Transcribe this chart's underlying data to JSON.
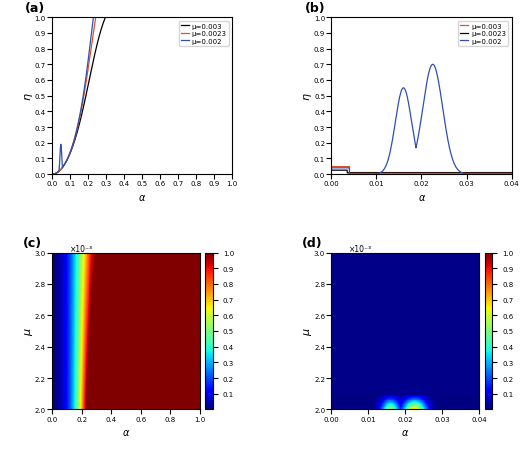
{
  "panel_a": {
    "label": "(a)",
    "xlabel": "α",
    "ylabel": "η",
    "xlim": [
      0,
      1.0
    ],
    "ylim": [
      0,
      1.0
    ],
    "xticks": [
      0.0,
      0.1,
      0.2,
      0.3,
      0.4,
      0.5,
      0.6,
      0.7,
      0.8,
      0.9,
      1.0
    ],
    "yticks": [
      0.0,
      0.1,
      0.2,
      0.3,
      0.4,
      0.5,
      0.6,
      0.7,
      0.8,
      0.9,
      1.0
    ],
    "lines": [
      {
        "mu": 0.003,
        "color": "#000000",
        "label": "μ=0.003"
      },
      {
        "mu": 0.0023,
        "color": "#e05030",
        "label": "μ=0.0023"
      },
      {
        "mu": 0.002,
        "color": "#3050b0",
        "label": "μ=0.002"
      }
    ]
  },
  "panel_b": {
    "label": "(b)",
    "xlabel": "α",
    "ylabel": "η",
    "xlim": [
      0,
      0.04
    ],
    "ylim": [
      0,
      1.0
    ],
    "xticks": [
      0.0,
      0.01,
      0.02,
      0.03,
      0.04
    ],
    "yticks": [
      0.0,
      0.1,
      0.2,
      0.3,
      0.4,
      0.5,
      0.6,
      0.7,
      0.8,
      0.9,
      1.0
    ],
    "lines": [
      {
        "mu": 0.003,
        "color": "#e05030",
        "label": "μ=0.003"
      },
      {
        "mu": 0.0023,
        "color": "#000000",
        "label": "μ=0.0023"
      },
      {
        "mu": 0.002,
        "color": "#3050b0",
        "label": "μ=0.002"
      }
    ]
  },
  "panel_c": {
    "label": "(c)",
    "xlabel": "α",
    "ylabel": "μ",
    "xlim": [
      0,
      1.0
    ],
    "ylim": [
      0.002,
      0.003
    ],
    "yticks": [
      0.002,
      0.0022,
      0.0024,
      0.0026,
      0.0028,
      0.003
    ],
    "ytick_labels": [
      "2.0",
      "2.2",
      "2.4",
      "2.6",
      "2.8",
      "3.0"
    ],
    "y_scale_label": "×10⁻³"
  },
  "panel_d": {
    "label": "(d)",
    "xlabel": "α",
    "ylabel": "μ",
    "xlim": [
      0,
      0.04
    ],
    "ylim": [
      0.002,
      0.003
    ],
    "xticks": [
      0,
      0.01,
      0.02,
      0.03,
      0.04
    ],
    "yticks": [
      0.002,
      0.0022,
      0.0024,
      0.0026,
      0.0028,
      0.003
    ],
    "ytick_labels": [
      "2.0",
      "2.2",
      "2.4",
      "2.6",
      "2.8",
      "3.0"
    ],
    "y_scale_label": "×10⁻³"
  },
  "colorbar_ticks": [
    0.1,
    0.2,
    0.3,
    0.4,
    0.5,
    0.6,
    0.7,
    0.8,
    0.9,
    1.0
  ]
}
